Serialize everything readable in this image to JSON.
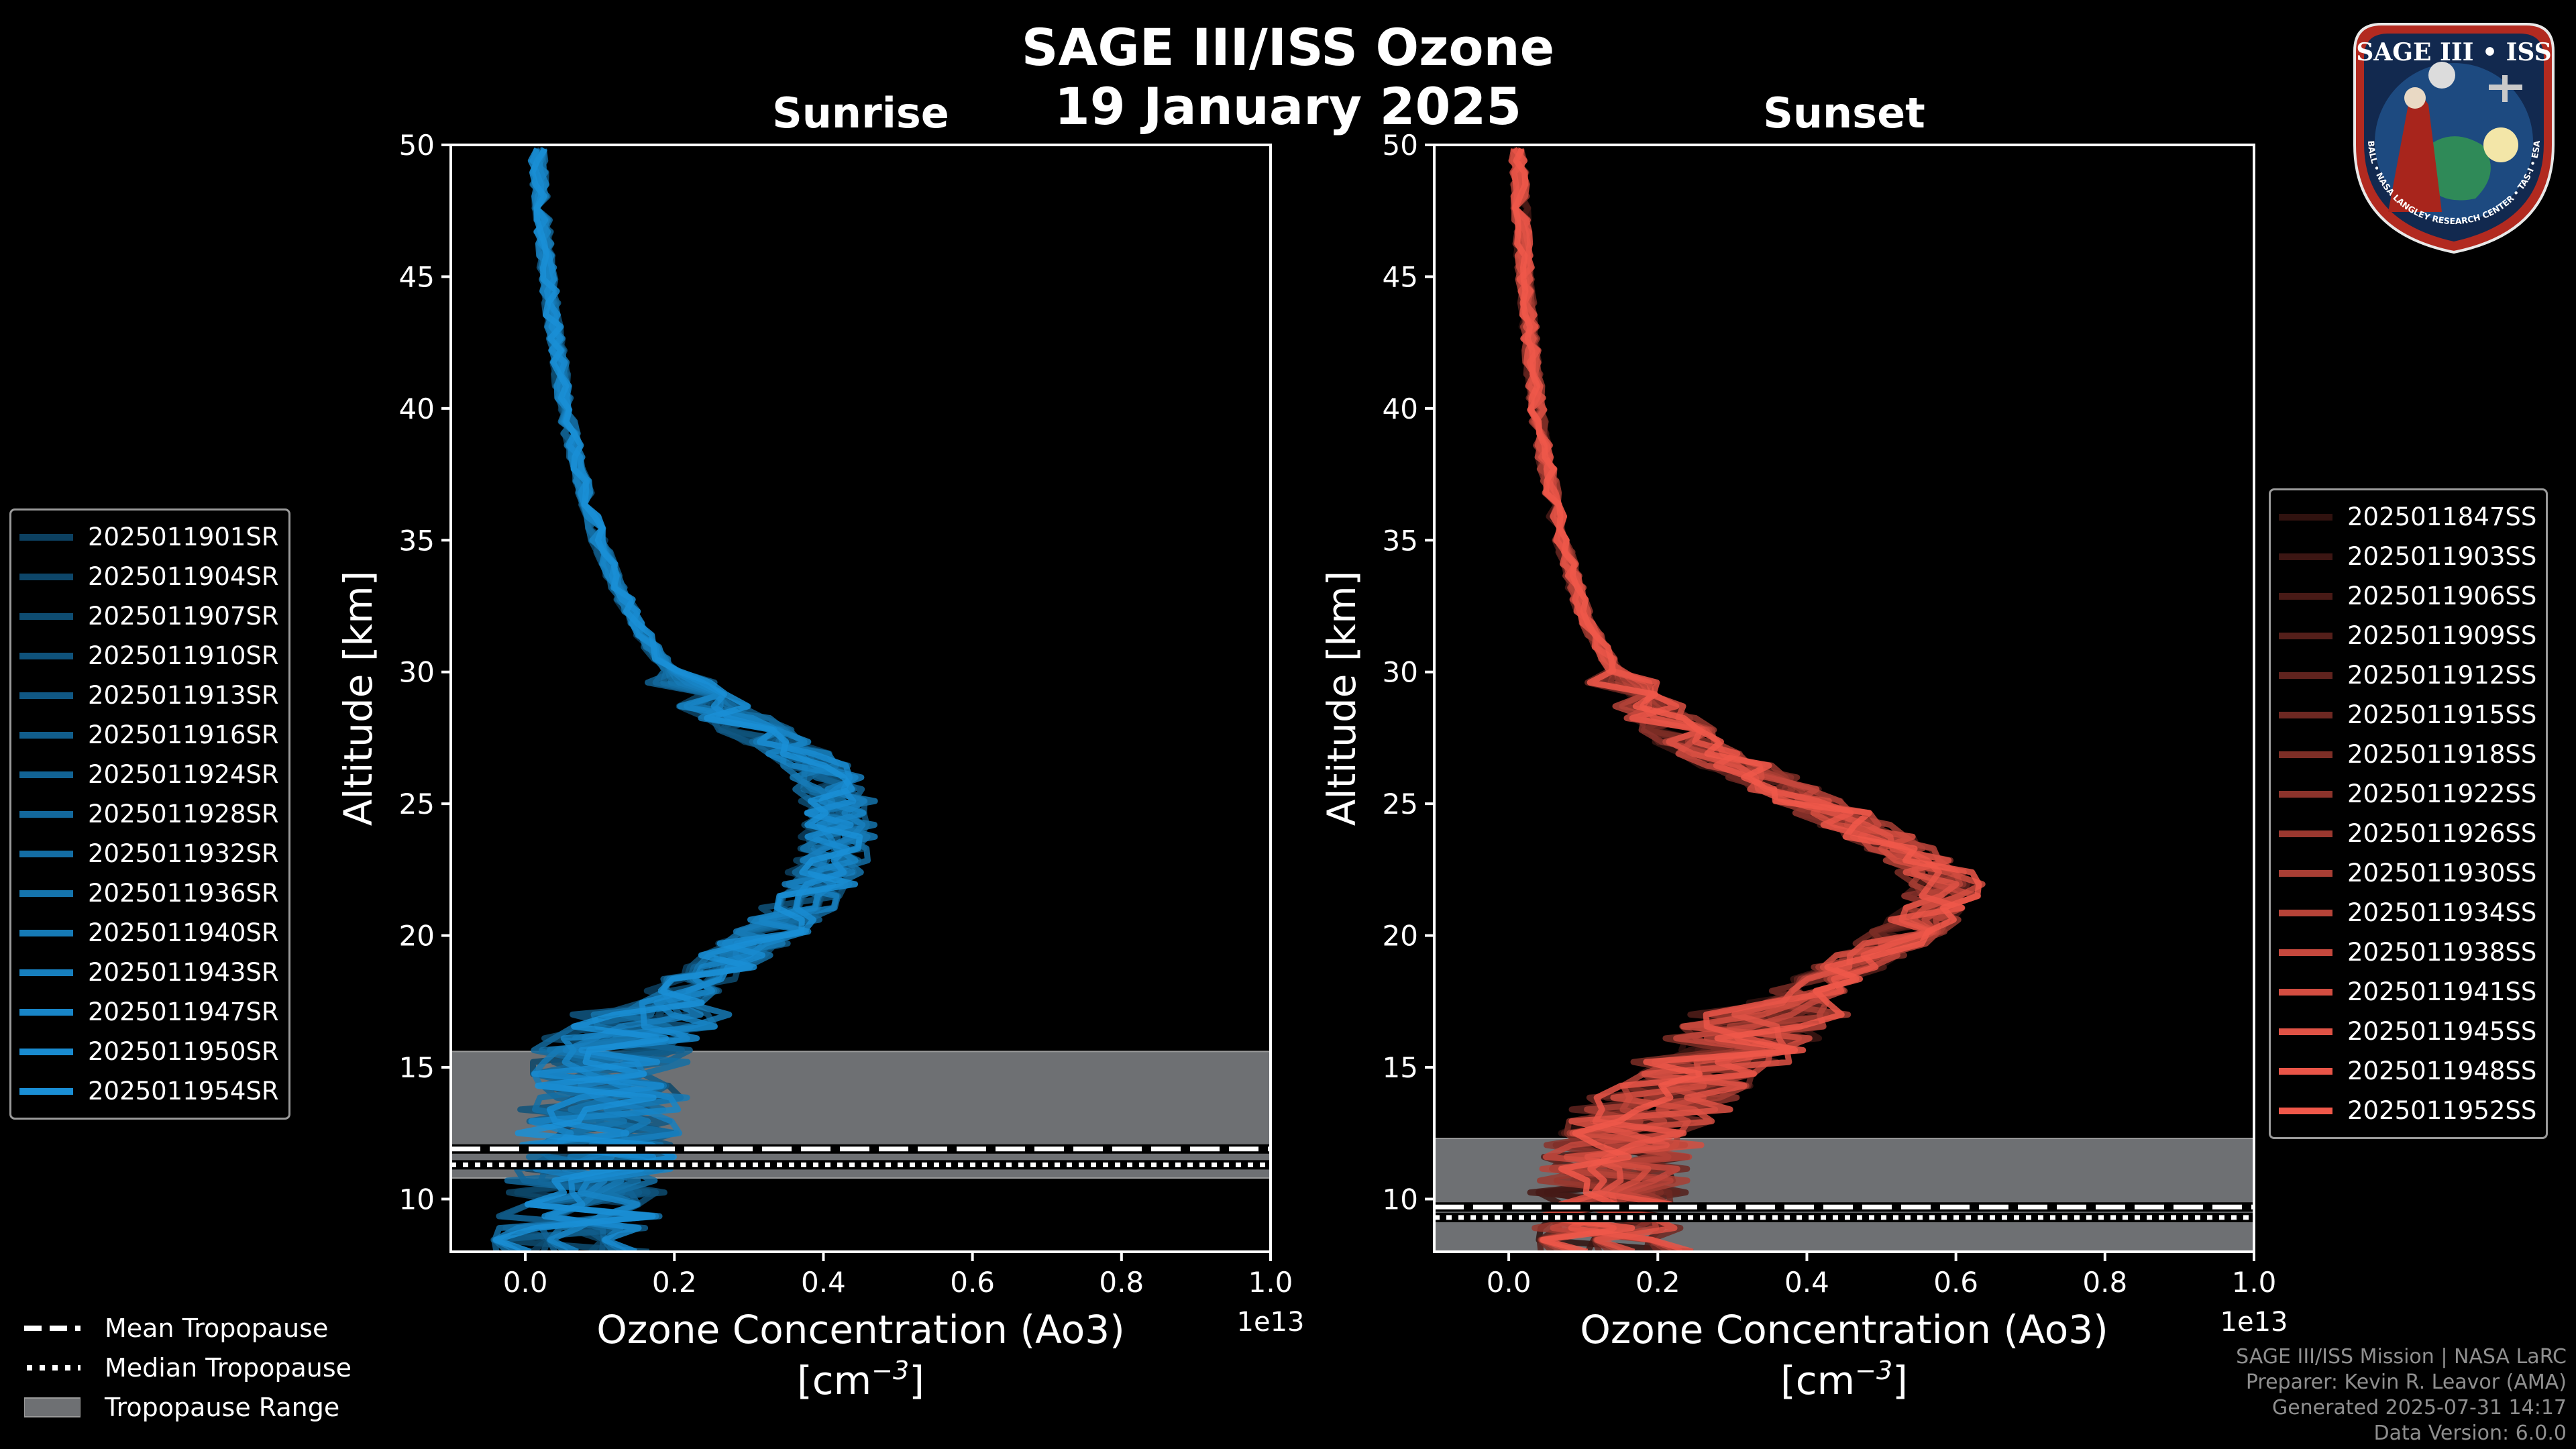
{
  "suptitle_line1": "SAGE III/ISS Ozone",
  "suptitle_line2": "19 January 2025",
  "footer": {
    "line1": "SAGE III/ISS Mission | NASA LaRC",
    "line2": "Preparer: Kevin R. Leavor (AMA)",
    "line3": "Generated 2025-07-31 14:17",
    "line4": "Data Version: 6.0.0"
  },
  "logo": {
    "top_text": "SAGE III • ISS",
    "ring_text": "BALL • NASA LANGLEY RESEARCH CENTER • TAS-I • ESA"
  },
  "tropopause_legend": {
    "mean_label": "Mean Tropopause",
    "median_label": "Median Tropopause",
    "range_label": "Tropopause Range"
  },
  "colors": {
    "sunrise": "#1a8fd6",
    "sunset": "#f0584a",
    "range": "#6e7073",
    "background": "#000000"
  },
  "chart_data": [
    {
      "type": "line",
      "title": "Sunrise",
      "xlabel": "Ozone Concentration (Ao3)",
      "xunit": "[cm",
      "xunit_sup": "−3",
      "xunit_close": "]",
      "ylabel": "Altitude [km]",
      "offset_text": "1e13",
      "xlim": [
        -0.1,
        1.0
      ],
      "ylim": [
        8,
        50
      ],
      "xticks": [
        "0.0",
        "0.2",
        "0.4",
        "0.6",
        "0.8",
        "1.0"
      ],
      "yticks": [
        "10",
        "15",
        "20",
        "25",
        "30",
        "35",
        "40",
        "45",
        "50"
      ],
      "tropopause": {
        "mean": 11.9,
        "median": 11.3,
        "range": [
          10.8,
          15.6
        ]
      },
      "base_profile": [
        [
          8,
          0.06
        ],
        [
          9,
          0.07
        ],
        [
          10,
          0.08
        ],
        [
          11,
          0.09
        ],
        [
          12,
          0.1
        ],
        [
          13,
          0.1
        ],
        [
          14,
          0.11
        ],
        [
          15,
          0.11
        ],
        [
          16,
          0.13
        ],
        [
          17,
          0.17
        ],
        [
          18,
          0.22
        ],
        [
          19,
          0.27
        ],
        [
          20,
          0.33
        ],
        [
          21,
          0.37
        ],
        [
          22,
          0.4
        ],
        [
          23,
          0.42
        ],
        [
          24,
          0.43
        ],
        [
          25,
          0.43
        ],
        [
          26,
          0.41
        ],
        [
          27,
          0.37
        ],
        [
          28,
          0.3
        ],
        [
          29,
          0.24
        ],
        [
          30,
          0.2
        ],
        [
          31,
          0.17
        ],
        [
          32,
          0.15
        ],
        [
          33,
          0.13
        ],
        [
          34,
          0.115
        ],
        [
          35,
          0.1
        ],
        [
          36,
          0.09
        ],
        [
          37,
          0.08
        ],
        [
          38,
          0.07
        ],
        [
          39,
          0.062
        ],
        [
          40,
          0.055
        ],
        [
          42,
          0.045
        ],
        [
          44,
          0.035
        ],
        [
          46,
          0.027
        ],
        [
          48,
          0.021
        ],
        [
          50,
          0.016
        ]
      ],
      "series": [
        {
          "name": "2025011901SR",
          "shade": 0.45
        },
        {
          "name": "2025011904SR",
          "shade": 0.49
        },
        {
          "name": "2025011907SR",
          "shade": 0.53
        },
        {
          "name": "2025011910SR",
          "shade": 0.57
        },
        {
          "name": "2025011913SR",
          "shade": 0.61
        },
        {
          "name": "2025011916SR",
          "shade": 0.65
        },
        {
          "name": "2025011924SR",
          "shade": 0.69
        },
        {
          "name": "2025011928SR",
          "shade": 0.73
        },
        {
          "name": "2025011932SR",
          "shade": 0.77
        },
        {
          "name": "2025011936SR",
          "shade": 0.81
        },
        {
          "name": "2025011940SR",
          "shade": 0.85
        },
        {
          "name": "2025011943SR",
          "shade": 0.89
        },
        {
          "name": "2025011947SR",
          "shade": 0.93
        },
        {
          "name": "2025011950SR",
          "shade": 0.97
        },
        {
          "name": "2025011954SR",
          "shade": 1.0
        }
      ]
    },
    {
      "type": "line",
      "title": "Sunset",
      "xlabel": "Ozone Concentration (Ao3)",
      "xunit": "[cm",
      "xunit_sup": "−3",
      "xunit_close": "]",
      "ylabel": "Altitude [km]",
      "offset_text": "1e13",
      "xlim": [
        -0.1,
        1.0
      ],
      "ylim": [
        8,
        50
      ],
      "xticks": [
        "0.0",
        "0.2",
        "0.4",
        "0.6",
        "0.8",
        "1.0"
      ],
      "yticks": [
        "10",
        "15",
        "20",
        "25",
        "30",
        "35",
        "40",
        "45",
        "50"
      ],
      "tropopause": {
        "mean": 9.7,
        "median": 9.3,
        "range": [
          8,
          12.3
        ]
      },
      "base_profile": [
        [
          8,
          0.14
        ],
        [
          9,
          0.13
        ],
        [
          10,
          0.13
        ],
        [
          11,
          0.14
        ],
        [
          12,
          0.15
        ],
        [
          13,
          0.17
        ],
        [
          14,
          0.2
        ],
        [
          15,
          0.25
        ],
        [
          16,
          0.3
        ],
        [
          17,
          0.34
        ],
        [
          18,
          0.4
        ],
        [
          19,
          0.46
        ],
        [
          20,
          0.52
        ],
        [
          21,
          0.56
        ],
        [
          22,
          0.57
        ],
        [
          23,
          0.53
        ],
        [
          24,
          0.47
        ],
        [
          25,
          0.4
        ],
        [
          26,
          0.33
        ],
        [
          27,
          0.26
        ],
        [
          28,
          0.21
        ],
        [
          29,
          0.17
        ],
        [
          30,
          0.14
        ],
        [
          31,
          0.12
        ],
        [
          32,
          0.1
        ],
        [
          33,
          0.09
        ],
        [
          34,
          0.08
        ],
        [
          35,
          0.07
        ],
        [
          36,
          0.062
        ],
        [
          37,
          0.055
        ],
        [
          38,
          0.048
        ],
        [
          39,
          0.042
        ],
        [
          40,
          0.037
        ],
        [
          42,
          0.03
        ],
        [
          44,
          0.024
        ],
        [
          46,
          0.019
        ],
        [
          48,
          0.015
        ],
        [
          50,
          0.012
        ]
      ],
      "series": [
        {
          "name": "2025011847SS",
          "shade": 0.2
        },
        {
          "name": "2025011903SS",
          "shade": 0.25
        },
        {
          "name": "2025011906SS",
          "shade": 0.3
        },
        {
          "name": "2025011909SS",
          "shade": 0.35
        },
        {
          "name": "2025011912SS",
          "shade": 0.4
        },
        {
          "name": "2025011915SS",
          "shade": 0.46
        },
        {
          "name": "2025011918SS",
          "shade": 0.52
        },
        {
          "name": "2025011922SS",
          "shade": 0.58
        },
        {
          "name": "2025011926SS",
          "shade": 0.64
        },
        {
          "name": "2025011930SS",
          "shade": 0.7
        },
        {
          "name": "2025011934SS",
          "shade": 0.76
        },
        {
          "name": "2025011938SS",
          "shade": 0.82
        },
        {
          "name": "2025011941SS",
          "shade": 0.88
        },
        {
          "name": "2025011945SS",
          "shade": 0.93
        },
        {
          "name": "2025011948SS",
          "shade": 0.97
        },
        {
          "name": "2025011952SS",
          "shade": 1.0
        }
      ]
    }
  ]
}
